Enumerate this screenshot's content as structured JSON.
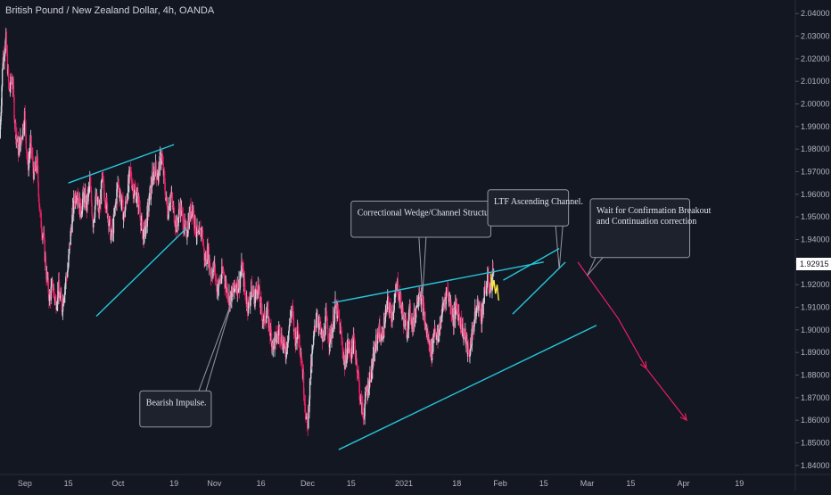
{
  "header": {
    "title": "British Pound / New Zealand Dollar, 4h, OANDA"
  },
  "chart_data": {
    "type": "candlestick",
    "symbol": "GBPNZD",
    "timeframe": "4h",
    "ylim": [
      1.836,
      2.046
    ],
    "y_ticks": [
      "2.04000",
      "2.03000",
      "2.02000",
      "2.01000",
      "2.00000",
      "1.99000",
      "1.98000",
      "1.97000",
      "1.96000",
      "1.95000",
      "1.94000",
      "1.93000",
      "1.92000",
      "1.91000",
      "1.90000",
      "1.89000",
      "1.88000",
      "1.87000",
      "1.86000",
      "1.85000",
      "1.84000"
    ],
    "y_tick_values": [
      2.04,
      2.03,
      2.02,
      2.01,
      2.0,
      1.99,
      1.98,
      1.97,
      1.96,
      1.95,
      1.94,
      1.93,
      1.92,
      1.91,
      1.9,
      1.89,
      1.88,
      1.87,
      1.86,
      1.85,
      1.84
    ],
    "x_labels": [
      "Sep",
      "15",
      "Oct",
      "19",
      "Nov",
      "16",
      "Dec",
      "15",
      "2021",
      "18",
      "Feb",
      "15",
      "Mar",
      "15",
      "Apr",
      "19"
    ],
    "x_label_days": [
      0,
      14,
      30,
      48,
      61,
      76,
      91,
      105,
      122,
      139,
      153,
      167,
      181,
      195,
      212,
      230
    ],
    "date_range_days": [
      -8,
      248
    ],
    "current_price": "1.92915",
    "current_price_value": 1.92915,
    "price_path": [
      [
        -8,
        1.985
      ],
      [
        -7,
        2.02
      ],
      [
        -6,
        2.028
      ],
      [
        -5,
        2.005
      ],
      [
        -4,
        2.012
      ],
      [
        -3,
        1.99
      ],
      [
        -2,
        1.98
      ],
      [
        -1,
        1.985
      ],
      [
        0,
        1.995
      ],
      [
        1,
        1.972
      ],
      [
        2,
        1.982
      ],
      [
        3,
        1.968
      ],
      [
        4,
        1.974
      ],
      [
        5,
        1.95
      ],
      [
        6,
        1.942
      ],
      [
        7,
        1.925
      ],
      [
        8,
        1.914
      ],
      [
        9,
        1.92
      ],
      [
        10,
        1.912
      ],
      [
        11,
        1.918
      ],
      [
        12,
        1.91
      ],
      [
        13,
        1.92
      ],
      [
        14,
        1.928
      ],
      [
        15,
        1.945
      ],
      [
        16,
        1.958
      ],
      [
        17,
        1.962
      ],
      [
        18,
        1.952
      ],
      [
        19,
        1.96
      ],
      [
        20,
        1.955
      ],
      [
        21,
        1.965
      ],
      [
        22,
        1.948
      ],
      [
        23,
        1.958
      ],
      [
        24,
        1.952
      ],
      [
        25,
        1.966
      ],
      [
        26,
        1.958
      ],
      [
        27,
        1.95
      ],
      [
        28,
        1.94
      ],
      [
        29,
        1.952
      ],
      [
        30,
        1.965
      ],
      [
        31,
        1.958
      ],
      [
        32,
        1.95
      ],
      [
        33,
        1.96
      ],
      [
        34,
        1.97
      ],
      [
        35,
        1.962
      ],
      [
        36,
        1.96
      ],
      [
        37,
        1.955
      ],
      [
        38,
        1.94
      ],
      [
        39,
        1.946
      ],
      [
        40,
        1.956
      ],
      [
        41,
        1.966
      ],
      [
        42,
        1.972
      ],
      [
        43,
        1.968
      ],
      [
        44,
        1.978
      ],
      [
        45,
        1.965
      ],
      [
        46,
        1.952
      ],
      [
        47,
        1.96
      ],
      [
        48,
        1.952
      ],
      [
        49,
        1.945
      ],
      [
        50,
        1.955
      ],
      [
        51,
        1.948
      ],
      [
        52,
        1.942
      ],
      [
        53,
        1.95
      ],
      [
        54,
        1.955
      ],
      [
        55,
        1.945
      ],
      [
        56,
        1.94
      ],
      [
        57,
        1.945
      ],
      [
        58,
        1.93
      ],
      [
        59,
        1.935
      ],
      [
        60,
        1.925
      ],
      [
        61,
        1.928
      ],
      [
        62,
        1.918
      ],
      [
        63,
        1.922
      ],
      [
        64,
        1.926
      ],
      [
        65,
        1.918
      ],
      [
        66,
        1.914
      ],
      [
        67,
        1.916
      ],
      [
        68,
        1.92
      ],
      [
        69,
        1.92
      ],
      [
        70,
        1.928
      ],
      [
        71,
        1.916
      ],
      [
        72,
        1.91
      ],
      [
        73,
        1.918
      ],
      [
        74,
        1.914
      ],
      [
        75,
        1.92
      ],
      [
        76,
        1.91
      ],
      [
        77,
        1.904
      ],
      [
        78,
        1.908
      ],
      [
        79,
        1.9
      ],
      [
        80,
        1.893
      ],
      [
        81,
        1.896
      ],
      [
        82,
        1.9
      ],
      [
        83,
        1.895
      ],
      [
        84,
        1.89
      ],
      [
        85,
        1.9
      ],
      [
        86,
        1.91
      ],
      [
        87,
        1.896
      ],
      [
        88,
        1.9
      ],
      [
        89,
        1.89
      ],
      [
        90,
        1.872
      ],
      [
        91,
        1.855
      ],
      [
        92,
        1.88
      ],
      [
        93,
        1.895
      ],
      [
        94,
        1.908
      ],
      [
        95,
        1.9
      ],
      [
        96,
        1.895
      ],
      [
        97,
        1.905
      ],
      [
        98,
        1.896
      ],
      [
        99,
        1.9
      ],
      [
        100,
        1.91
      ],
      [
        101,
        1.906
      ],
      [
        102,
        1.896
      ],
      [
        103,
        1.885
      ],
      [
        104,
        1.893
      ],
      [
        105,
        1.89
      ],
      [
        106,
        1.895
      ],
      [
        107,
        1.885
      ],
      [
        108,
        1.87
      ],
      [
        109,
        1.862
      ],
      [
        110,
        1.872
      ],
      [
        111,
        1.878
      ],
      [
        112,
        1.885
      ],
      [
        113,
        1.893
      ],
      [
        114,
        1.9
      ],
      [
        115,
        1.896
      ],
      [
        116,
        1.905
      ],
      [
        117,
        1.912
      ],
      [
        118,
        1.906
      ],
      [
        119,
        1.912
      ],
      [
        120,
        1.92
      ],
      [
        121,
        1.912
      ],
      [
        122,
        1.905
      ],
      [
        123,
        1.9
      ],
      [
        124,
        1.908
      ],
      [
        125,
        1.902
      ],
      [
        126,
        1.91
      ],
      [
        127,
        1.918
      ],
      [
        128,
        1.912
      ],
      [
        129,
        1.902
      ],
      [
        130,
        1.895
      ],
      [
        131,
        1.89
      ],
      [
        132,
        1.902
      ],
      [
        133,
        1.895
      ],
      [
        134,
        1.905
      ],
      [
        135,
        1.912
      ],
      [
        136,
        1.918
      ],
      [
        137,
        1.912
      ],
      [
        138,
        1.905
      ],
      [
        139,
        1.91
      ],
      [
        140,
        1.906
      ],
      [
        141,
        1.9
      ],
      [
        142,
        1.896
      ],
      [
        143,
        1.888
      ],
      [
        144,
        1.898
      ],
      [
        145,
        1.906
      ],
      [
        146,
        1.912
      ],
      [
        147,
        1.906
      ],
      [
        148,
        1.915
      ],
      [
        149,
        1.922
      ],
      [
        150,
        1.918
      ],
      [
        151,
        1.928
      ]
    ],
    "projection_path": [
      [
        150,
        1.925
      ],
      [
        150.5,
        1.918
      ],
      [
        151,
        1.922
      ],
      [
        151.5,
        1.916
      ],
      [
        152,
        1.92
      ],
      [
        152.5,
        1.913
      ]
    ],
    "drawings": {
      "channel_lines": [
        {
          "from": [
            14,
            1.965
          ],
          "to": [
            48,
            1.982
          ]
        },
        {
          "from": [
            23,
            1.906
          ],
          "to": [
            52,
            1.945
          ]
        },
        {
          "from": [
            99,
            1.912
          ],
          "to": [
            167,
            1.93
          ]
        },
        {
          "from": [
            101,
            1.847
          ],
          "to": [
            184,
            1.902
          ]
        },
        {
          "from": [
            157,
            1.907
          ],
          "to": [
            174,
            1.93
          ]
        },
        {
          "from": [
            154,
            1.922
          ],
          "to": [
            172,
            1.936
          ]
        }
      ],
      "bearish_arrow": {
        "from": [
          178,
          1.93
        ],
        "to": [
          191,
          1.905
        ],
        "head_at": [
          200,
          1.883
        ],
        "end": [
          213,
          1.86
        ]
      },
      "annotations": [
        {
          "text": "Correctional Wedge/Channel Structure.",
          "box_left": [
            105,
            1.957
          ],
          "box_right": [
            150,
            1.957
          ],
          "box_bottom": 1.941,
          "pointer_to": [
            128,
            1.915
          ]
        },
        {
          "text": "LTF Ascending Channel.",
          "box_left": [
            149,
            1.962
          ],
          "box_right": [
            175,
            1.962
          ],
          "box_bottom": 1.946,
          "pointer_to": [
            172,
            1.927
          ]
        },
        {
          "text": "Bearish Impulse.",
          "box_left": [
            37,
            1.873
          ],
          "box_right": [
            60,
            1.873
          ],
          "box_bottom": 1.857,
          "pointer_to": [
            67,
            1.914
          ]
        }
      ],
      "note_multiline": {
        "lines": [
          "Wait for Confirmation Breakout",
          "and Continuation correction"
        ],
        "box_left": [
          182,
          1.958
        ],
        "box_right": [
          214,
          1.958
        ],
        "box_bottom": 1.932,
        "pointer_to": [
          181,
          1.924
        ]
      }
    },
    "colors": {
      "background": "#131722",
      "candle_up": "#d1d4dc",
      "candle_down": "#e91e63",
      "trendline": "#26c6da",
      "projection": "#ffeb3b",
      "arrow": "#e91e63",
      "axis_text": "#b2b5be",
      "price_badge": "#ffffff"
    }
  }
}
